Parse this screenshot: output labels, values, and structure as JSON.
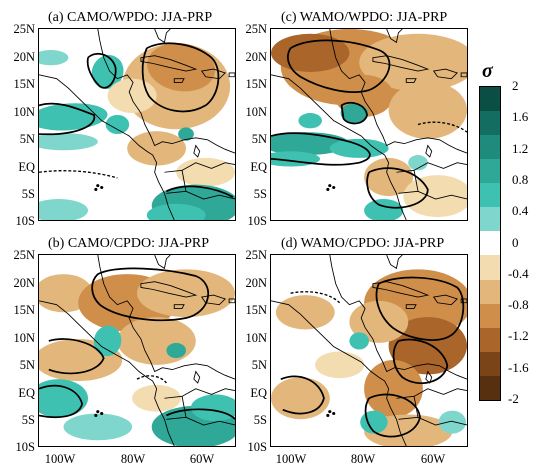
{
  "panels": [
    {
      "id": "a",
      "title": "(a) CAMO/WPDO: JJA-PRP",
      "pattern": "a"
    },
    {
      "id": "c",
      "title": "(c) WAMO/WPDO: JJA-PRP",
      "pattern": "c"
    },
    {
      "id": "b",
      "title": "(b) CAMO/CPDO: JJA-PRP",
      "pattern": "b"
    },
    {
      "id": "d",
      "title": "(d) WAMO/CPDO: JJA-PRP",
      "pattern": "d"
    }
  ],
  "lat_ticks": [
    "25N",
    "20N",
    "15N",
    "10N",
    "5N",
    "EQ",
    "5S",
    "10S"
  ],
  "lon_ticks": [
    "100W",
    "80W",
    "60W"
  ],
  "colorbar": {
    "title": "σ",
    "ticks": [
      "2",
      "1.6",
      "1.2",
      "0.8",
      "0.4",
      "0",
      "-0.4",
      "-0.8",
      "-1.2",
      "-1.6",
      "-2"
    ],
    "colors": [
      "#0b4f44",
      "#136d60",
      "#1f8b7c",
      "#2fa898",
      "#3fc1b2",
      "#7ed6cc",
      "#ffffff",
      "#f2dcb0",
      "#e3b77c",
      "#cf8f4a",
      "#a9652a",
      "#7a4418",
      "#57300f"
    ]
  },
  "chart_data": {
    "type": "heatmap",
    "variable": "JJA-PRP",
    "units": "σ",
    "lon_range": [
      "100W",
      "60W"
    ],
    "lat_range": [
      "10S",
      "25N"
    ],
    "color_range": [
      -2,
      2
    ],
    "panels": [
      "(a) CAMO/WPDO: JJA-PRP",
      "(c) WAMO/WPDO: JJA-PRP",
      "(b) CAMO/CPDO: JJA-PRP",
      "(d) WAMO/CPDO: JJA-PRP"
    ]
  }
}
